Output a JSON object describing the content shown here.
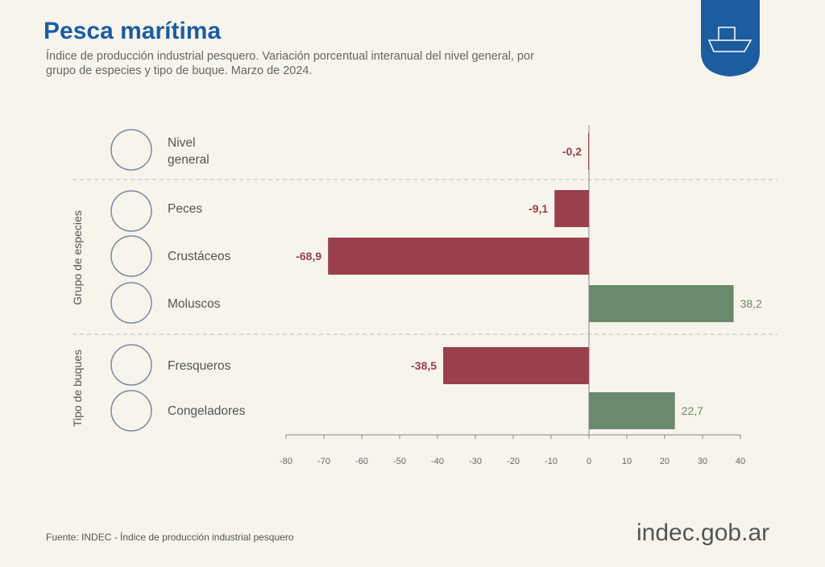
{
  "header": {
    "title": "Pesca marítima",
    "subtitle": "Índice de producción industrial pesquero. Variación porcentual interanual del nivel general, por grupo de especies y tipo de buque. Marzo de 2024."
  },
  "chart_data": {
    "type": "bar",
    "orientation": "horizontal",
    "categories": [
      "Nivel general",
      "Peces",
      "Crustáceos",
      "Moluscos",
      "Fresqueros",
      "Congeladores"
    ],
    "values": [
      -0.2,
      -9.1,
      -68.9,
      38.2,
      -38.5,
      22.7
    ],
    "value_labels": [
      "-0,2",
      "-9,1",
      "-68,9",
      "38,2",
      "-38,5",
      "22,7"
    ],
    "group_labels": [
      "Grupo de especies",
      "Tipo de buques"
    ],
    "color_negative": "#9a3f4d",
    "color_positive": "#6a8a6e",
    "xlim": [
      -80,
      40
    ],
    "xticks": [
      -80,
      -70,
      -60,
      -50,
      -40,
      -30,
      -20,
      -10,
      0,
      10,
      20,
      30,
      40
    ]
  },
  "footer": {
    "source": "Fuente: INDEC - Índice de producción industrial pesquero",
    "logo": "indec.gob.ar"
  }
}
